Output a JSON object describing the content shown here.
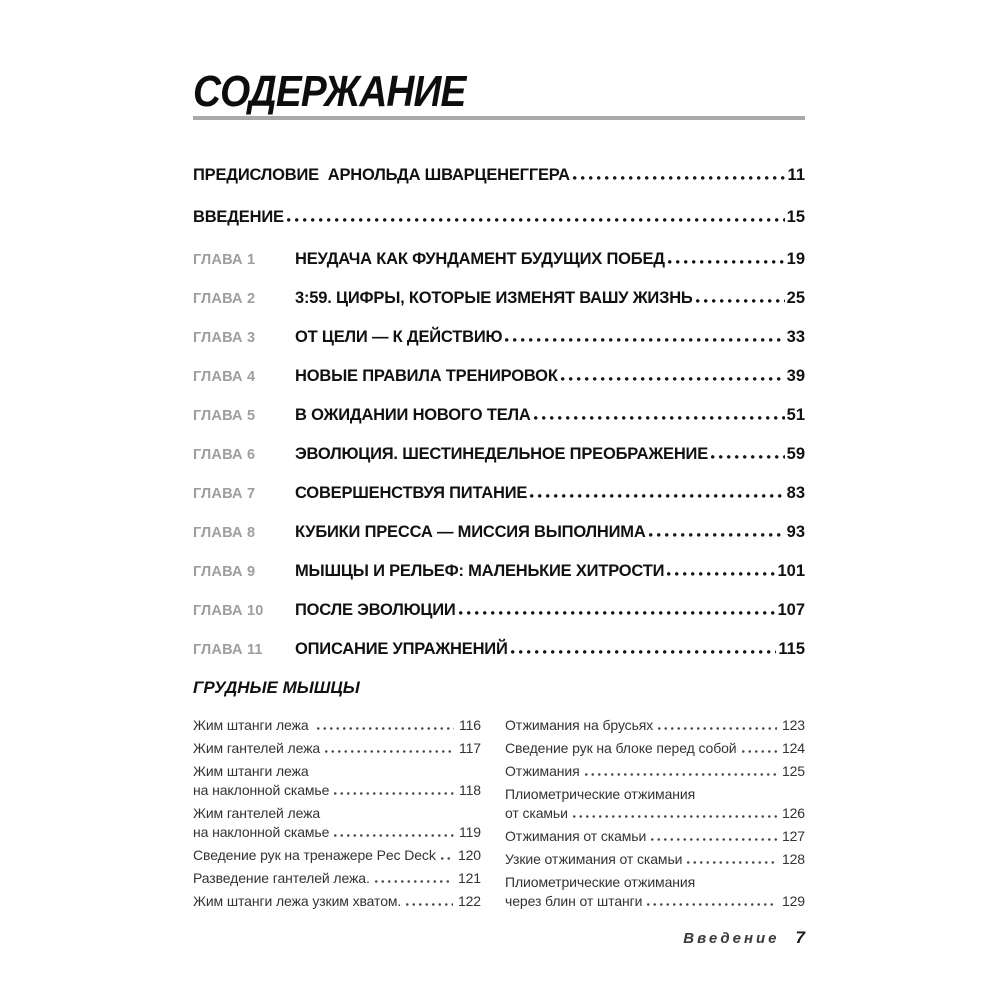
{
  "page": {
    "title": "СОДЕРЖАНИЕ",
    "footer": {
      "label": "Введение",
      "page_number": "7"
    }
  },
  "colors": {
    "title_rule": "#a9a9a9",
    "chapter_label_gray": "#9c9ea0",
    "body_text": "#333333",
    "heading_text": "#111111"
  },
  "toc": {
    "front_items": [
      {
        "title": "ПРЕДИСЛОВИЕ  АРНОЛЬДА ШВАРЦЕНЕГГЕРА",
        "page": "11"
      },
      {
        "title": "ВВЕДЕНИЕ",
        "page": "15"
      }
    ],
    "chapters": [
      {
        "label": "ГЛАВА 1",
        "title": "НЕУДАЧА КАК ФУНДАМЕНТ БУДУЩИХ ПОБЕД",
        "page": "19"
      },
      {
        "label": "ГЛАВА 2",
        "title": "3:59. ЦИФРЫ, КОТОРЫЕ ИЗМЕНЯТ ВАШУ ЖИЗНЬ",
        "page": "25"
      },
      {
        "label": "ГЛАВА 3",
        "title": "ОТ ЦЕЛИ — К ДЕЙСТВИЮ",
        "page": "33"
      },
      {
        "label": "ГЛАВА 4",
        "title": "НОВЫЕ ПРАВИЛА ТРЕНИРОВОК",
        "page": "39"
      },
      {
        "label": "ГЛАВА 5",
        "title": "В ОЖИДАНИИ НОВОГО ТЕЛА",
        "page": "51"
      },
      {
        "label": "ГЛАВА 6",
        "title": "ЭВОЛЮЦИЯ. ШЕСТИНЕДЕЛЬНОЕ ПРЕОБРАЖЕНИЕ",
        "page": "59"
      },
      {
        "label": "ГЛАВА 7",
        "title": "СОВЕРШЕНСТВУЯ ПИТАНИЕ",
        "page": "83"
      },
      {
        "label": "ГЛАВА 8",
        "title": "КУБИКИ ПРЕССА — МИССИЯ ВЫПОЛНИМА",
        "page": "93"
      },
      {
        "label": "ГЛАВА 9",
        "title": "МЫШЦЫ И РЕЛЬЕФ: МАЛЕНЬКИЕ ХИТРОСТИ",
        "page": "101"
      },
      {
        "label": "ГЛАВА 10",
        "title": "ПОСЛЕ ЭВОЛЮЦИИ",
        "page": "107"
      },
      {
        "label": "ГЛАВА 11",
        "title": "ОПИСАНИЕ УПРАЖНЕНИЙ",
        "page": "115"
      }
    ]
  },
  "section": {
    "header": "ГРУДНЫЕ МЫШЦЫ",
    "left_column": [
      {
        "lines": [
          "Жим штанги лежа "
        ],
        "page": "116"
      },
      {
        "lines": [
          "Жим гантелей лежа"
        ],
        "page": "117"
      },
      {
        "lines": [
          "Жим штанги лежа",
          "на наклонной скамье"
        ],
        "page": "118"
      },
      {
        "lines": [
          "Жим гантелей лежа",
          "на наклонной скамье"
        ],
        "page": "119"
      },
      {
        "lines": [
          "Сведение рук на тренажере Pec Deck"
        ],
        "page": "120"
      },
      {
        "lines": [
          "Разведение гантелей лежа."
        ],
        "page": "121"
      },
      {
        "lines": [
          "Жим штанги лежа узким хватом."
        ],
        "page": "122"
      }
    ],
    "right_column": [
      {
        "lines": [
          "Отжимания на брусьях"
        ],
        "page": "123"
      },
      {
        "lines": [
          "Сведение рук на блоке перед собой"
        ],
        "page": "124"
      },
      {
        "lines": [
          "Отжимания"
        ],
        "page": "125"
      },
      {
        "lines": [
          "Плиометрические отжимания",
          "от скамьи"
        ],
        "page": "126"
      },
      {
        "lines": [
          "Отжимания от скамьи"
        ],
        "page": "127"
      },
      {
        "lines": [
          "Узкие отжимания от скамьи"
        ],
        "page": "128"
      },
      {
        "lines": [
          "Плиометрические отжимания",
          "через блин от штанги"
        ],
        "page": "129"
      }
    ]
  }
}
